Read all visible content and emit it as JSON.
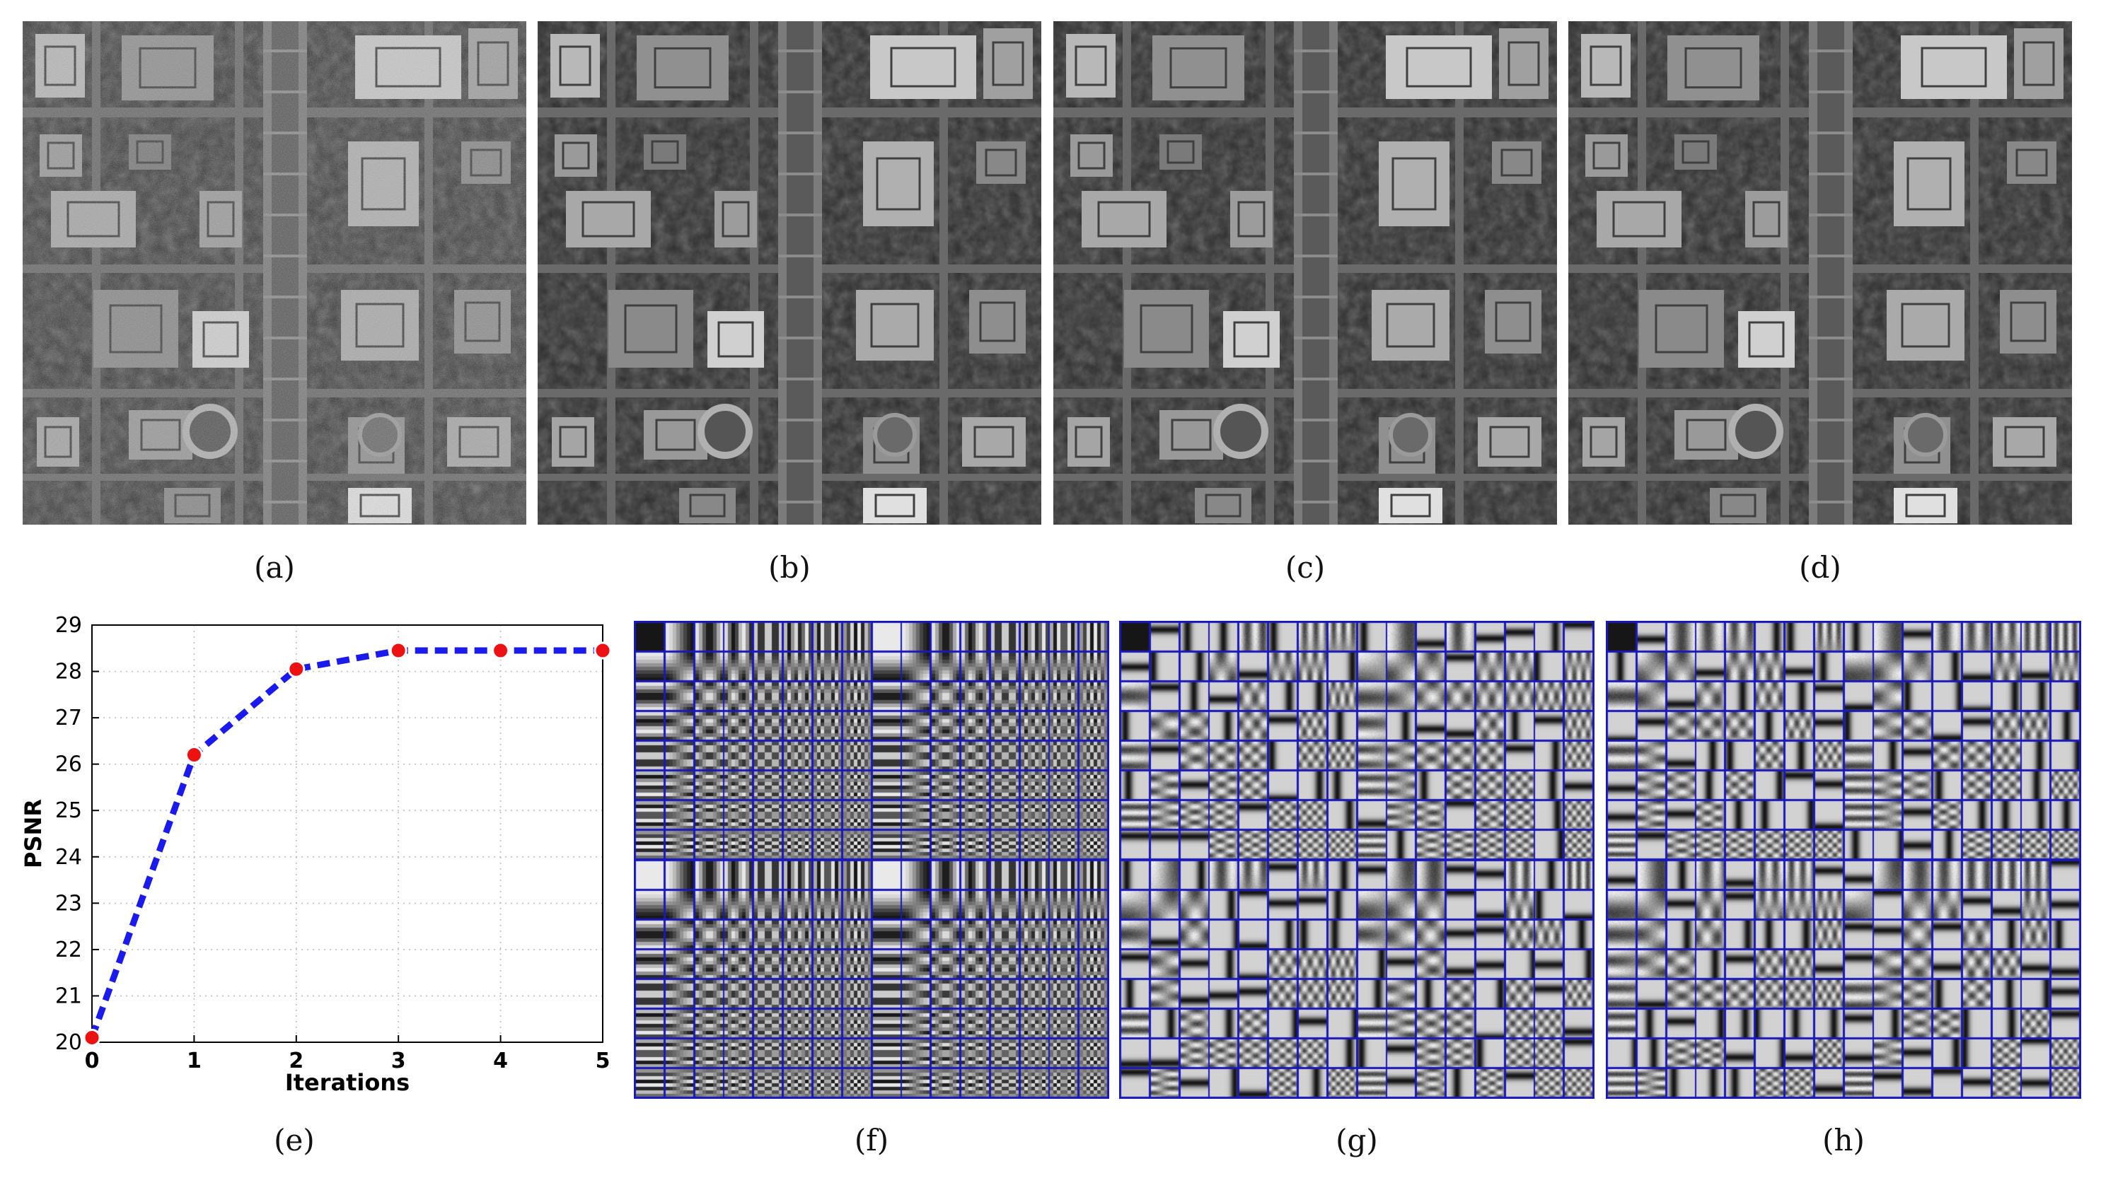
{
  "figure": {
    "panels": [
      {
        "id": "a",
        "label": "(a)",
        "type": "image",
        "content": "noisy-aerial"
      },
      {
        "id": "b",
        "label": "(b)",
        "type": "image",
        "content": "denoised-aerial"
      },
      {
        "id": "c",
        "label": "(c)",
        "type": "image",
        "content": "denoised-aerial"
      },
      {
        "id": "d",
        "label": "(d)",
        "type": "image",
        "content": "denoised-aerial"
      },
      {
        "id": "e",
        "label": "(e)",
        "type": "chart"
      },
      {
        "id": "f",
        "label": "(f)",
        "type": "dictionary",
        "style": "dct"
      },
      {
        "id": "g",
        "label": "(g)",
        "type": "dictionary",
        "style": "learned"
      },
      {
        "id": "h",
        "label": "(h)",
        "type": "dictionary",
        "style": "learned"
      }
    ]
  },
  "colors": {
    "line": "#1a1aee",
    "marker": "#ee1111",
    "grid_border": "#1a19b8",
    "grid": "#bbbbbb"
  },
  "chart_data": {
    "type": "line",
    "x": [
      0,
      1,
      2,
      3,
      4,
      5
    ],
    "series": [
      {
        "values": [
          20.1,
          26.2,
          28.05,
          28.45,
          28.45,
          28.45
        ]
      }
    ],
    "xlabel": "Iterations",
    "ylabel": "PSNR",
    "xlim": [
      0,
      5
    ],
    "ylim": [
      20,
      29
    ],
    "xticks": [
      "0",
      "1",
      "2",
      "3",
      "4",
      "5"
    ],
    "yticks": [
      "20",
      "21",
      "22",
      "23",
      "24",
      "25",
      "26",
      "27",
      "28",
      "29"
    ],
    "grid": true,
    "line_style": "dashed",
    "marker": "circle"
  }
}
